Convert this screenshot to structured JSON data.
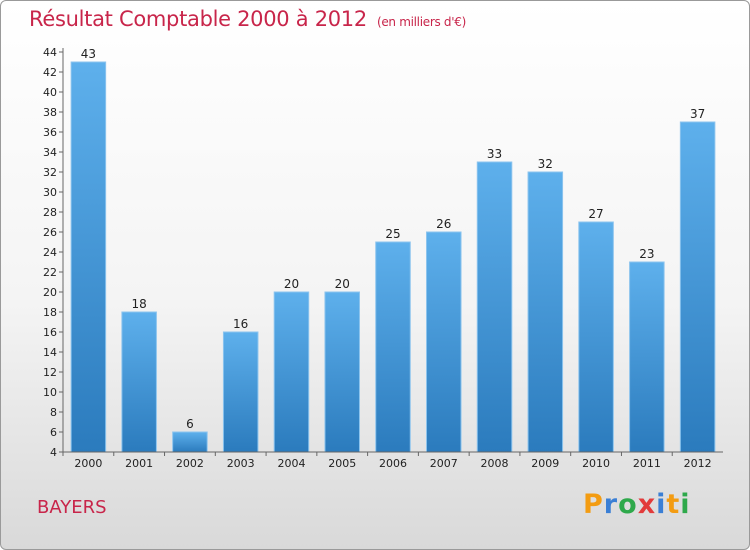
{
  "header": {
    "title": "Résultat Comptable 2000 à 2012",
    "subtitle": "(en milliers d'€)"
  },
  "footer": {
    "town": "BAYERS",
    "logo_letters": [
      {
        "ch": "P",
        "color": "#f39c12"
      },
      {
        "ch": "r",
        "color": "#3a7fd5"
      },
      {
        "ch": "o",
        "color": "#2ea94b"
      },
      {
        "ch": "x",
        "color": "#e23b3b"
      },
      {
        "ch": "i",
        "color": "#3a7fd5"
      },
      {
        "ch": "t",
        "color": "#f39c12"
      },
      {
        "ch": "i",
        "color": "#2ea94b"
      }
    ]
  },
  "colors": {
    "bar_top": "#5eb0ec",
    "bar_bottom": "#2b7bbd",
    "accent": "#c8254a"
  },
  "chart_data": {
    "type": "bar",
    "title": "Résultat Comptable 2000 à 2012",
    "subtitle": "(en milliers d'€)",
    "categories": [
      "2000",
      "2001",
      "2002",
      "2003",
      "2004",
      "2005",
      "2006",
      "2007",
      "2008",
      "2009",
      "2010",
      "2011",
      "2012"
    ],
    "values": [
      43,
      18,
      6,
      16,
      20,
      20,
      25,
      26,
      33,
      32,
      27,
      23,
      37
    ],
    "ylim": [
      4,
      44
    ],
    "yticks": [
      4,
      6,
      8,
      10,
      12,
      14,
      16,
      18,
      20,
      22,
      24,
      26,
      28,
      30,
      32,
      34,
      36,
      38,
      40,
      42,
      44
    ],
    "xlabel": "",
    "ylabel": "",
    "grid": false,
    "data_labels": true
  }
}
